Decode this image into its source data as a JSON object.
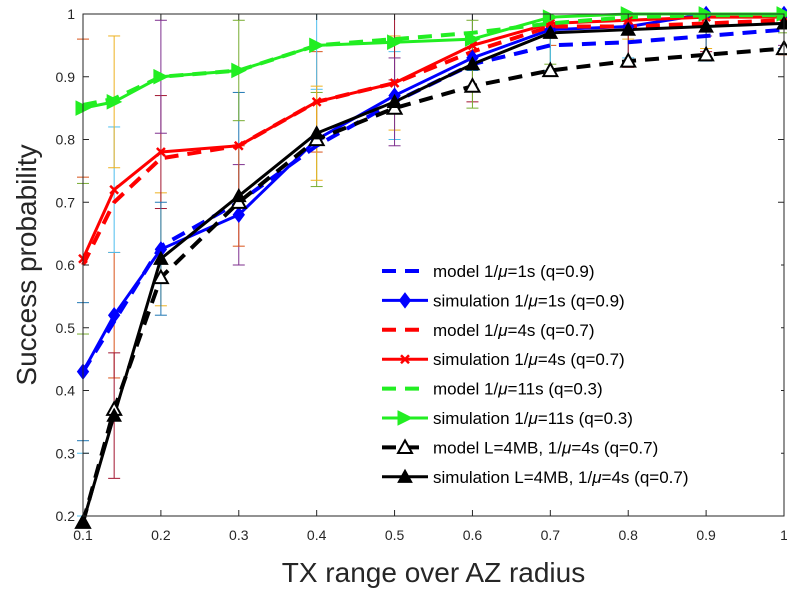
{
  "chart_data": {
    "type": "line",
    "xlabel": "TX range over AZ radius",
    "ylabel": "Success probability",
    "xlim": [
      0.1,
      1
    ],
    "ylim": [
      0.2,
      1
    ],
    "grid": false,
    "legend_position": "bottom-right",
    "x_ticks": [
      "0.1",
      "0.2",
      "0.3",
      "0.4",
      "0.5",
      "0.6",
      "0.7",
      "0.8",
      "0.9",
      "1"
    ],
    "y_ticks": [
      "0.2",
      "0.3",
      "0.4",
      "0.5",
      "0.6",
      "0.7",
      "0.8",
      "0.9",
      "1"
    ],
    "x": [
      0.1,
      0.14,
      0.2,
      0.3,
      0.4,
      0.5,
      0.6,
      0.7,
      0.8,
      0.9,
      1.0
    ],
    "series": [
      {
        "name": "model 1/μ=1s (q=0.9)",
        "label_prefix": "model 1/",
        "label_suffix": "=1s (q=0.9)",
        "kind": "model",
        "color": "#0000ff",
        "marker": "none",
        "values": [
          0.43,
          0.51,
          0.63,
          0.7,
          0.79,
          0.86,
          0.92,
          0.95,
          0.955,
          0.965,
          0.975
        ]
      },
      {
        "name": "simulation 1/μ=1s (q=0.9)",
        "label_prefix": "simulation 1/",
        "label_suffix": "=1s (q=0.9)",
        "kind": "simulation",
        "color": "#0000ff",
        "marker": "diamond",
        "values": [
          0.43,
          0.52,
          0.625,
          0.68,
          0.8,
          0.87,
          0.93,
          0.975,
          0.98,
          1.0,
          1.0
        ],
        "errors": [
          0.11,
          0.1,
          0.09,
          0.08,
          0.075,
          0.07,
          0.07,
          0.065,
          0.06,
          0.055,
          0.05
        ]
      },
      {
        "name": "model 1/μ=4s (q=0.7)",
        "label_prefix": "model 1/",
        "label_suffix": "=4s (q=0.7)",
        "kind": "model",
        "color": "#ff0000",
        "marker": "none",
        "values": [
          0.6,
          0.7,
          0.77,
          0.79,
          0.86,
          0.89,
          0.94,
          0.98,
          0.98,
          0.985,
          0.99
        ]
      },
      {
        "name": "simulation 1/μ=4s (q=0.7)",
        "label_prefix": "simulation 1/",
        "label_suffix": "=4s (q=0.7)",
        "kind": "simulation",
        "color": "#ff0000",
        "marker": "x",
        "values": [
          0.61,
          0.72,
          0.78,
          0.79,
          0.86,
          0.89,
          0.95,
          0.985,
          0.99,
          0.995,
          0.995
        ],
        "errors": [
          0.12,
          0.1,
          0.09,
          0.085,
          0.08,
          0.075,
          0.07,
          0.065,
          0.06,
          0.055,
          0.05
        ]
      },
      {
        "name": "model 1/μ=11s (q=0.3)",
        "label_prefix": "model 1/",
        "label_suffix": "=11s (q=0.3)",
        "kind": "model",
        "color": "#22ee22",
        "marker": "none",
        "values": [
          0.855,
          0.865,
          0.9,
          0.91,
          0.95,
          0.96,
          0.97,
          0.985,
          0.995,
          0.998,
          0.998
        ]
      },
      {
        "name": "simulation 1/μ=11s (q=0.3)",
        "label_prefix": "simulation 1/",
        "label_suffix": "=11s (q=0.3)",
        "kind": "simulation",
        "color": "#22ee22",
        "marker": "triangle-right",
        "values": [
          0.85,
          0.86,
          0.9,
          0.91,
          0.95,
          0.955,
          0.96,
          0.995,
          1.0,
          1.0,
          1.0
        ],
        "errors": [
          0.11,
          0.105,
          0.09,
          0.08,
          0.07,
          0.06,
          0.05,
          0.045,
          0.04,
          0.035,
          0.03
        ]
      },
      {
        "name": "model L=4MB, 1/μ=4s (q=0.7)",
        "label_prefix": "model L=4MB, 1/",
        "label_suffix": "=4s (q=0.7)",
        "kind": "model",
        "color": "#000000",
        "marker": "triangle-open",
        "values": [
          0.19,
          0.37,
          0.58,
          0.7,
          0.8,
          0.85,
          0.885,
          0.91,
          0.925,
          0.935,
          0.945
        ]
      },
      {
        "name": "simulation L=4MB, 1/μ=4s (q=0.7)",
        "label_prefix": "simulation L=4MB, 1/",
        "label_suffix": "=4s (q=0.7)",
        "kind": "simulation",
        "color": "#000000",
        "marker": "triangle-filled",
        "values": [
          0.19,
          0.36,
          0.61,
          0.71,
          0.81,
          0.86,
          0.92,
          0.97,
          0.975,
          0.98,
          0.985
        ],
        "errors": [
          0.11,
          0.1,
          0.09,
          0.08,
          0.075,
          0.07,
          0.07,
          0.065,
          0.06,
          0.055,
          0.05
        ]
      }
    ],
    "errorbar_colors": [
      "#1f77b4",
      "#d95319",
      "#edb120",
      "#7e2f8e",
      "#77ac30",
      "#4dbeee",
      "#a2142f"
    ]
  }
}
